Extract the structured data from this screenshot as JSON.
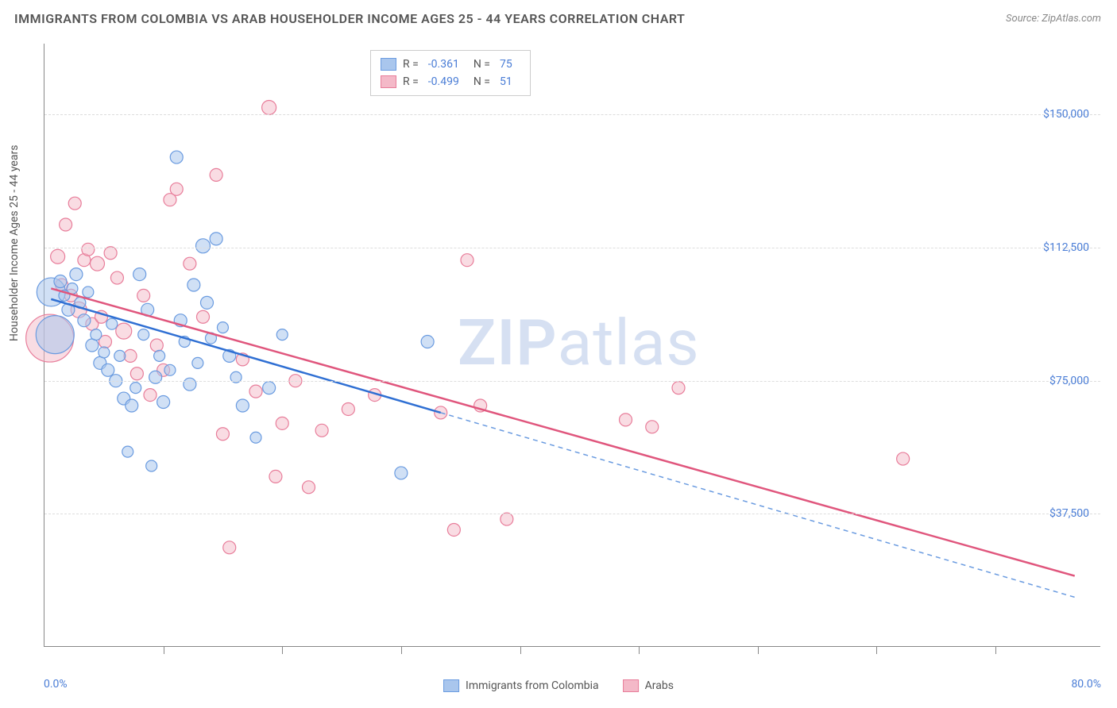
{
  "title": "IMMIGRANTS FROM COLOMBIA VS ARAB HOUSEHOLDER INCOME AGES 25 - 44 YEARS CORRELATION CHART",
  "source": "Source: ZipAtlas.com",
  "watermark_a": "ZIP",
  "watermark_b": "atlas",
  "chart": {
    "type": "scatter",
    "ylabel": "Householder Income Ages 25 - 44 years",
    "xlim": [
      0,
      80
    ],
    "ylim": [
      0,
      170000
    ],
    "xmin_label": "0.0%",
    "xmax_label": "80.0%",
    "yticks": [
      {
        "v": 37500,
        "label": "$37,500"
      },
      {
        "v": 75000,
        "label": "$75,000"
      },
      {
        "v": 112500,
        "label": "$112,500"
      },
      {
        "v": 150000,
        "label": "$150,000"
      }
    ],
    "xticks": [
      9,
      18,
      27,
      36,
      45,
      54,
      63,
      72
    ],
    "grid_color": "#dddddd",
    "axis_color": "#888888",
    "background_color": "#ffffff",
    "label_fontsize": 14,
    "title_fontsize": 16,
    "tick_label_color": "#4a7dd6",
    "series": {
      "colombia": {
        "label": "Immigrants from Colombia",
        "fill_color": "#a9c6ed",
        "stroke_color": "#6a9be0",
        "fill_opacity": 0.55,
        "R": -0.361,
        "N": 75,
        "trend": {
          "x1": 0.5,
          "y1": 98000,
          "x2": 30,
          "y2": 66000,
          "x2_ext": 78,
          "y2_ext": 14000,
          "color": "#2f6fd3",
          "dash_color": "#6a9be0"
        },
        "points": [
          {
            "x": 0.5,
            "y": 100000,
            "r": 18
          },
          {
            "x": 0.8,
            "y": 88000,
            "r": 24
          },
          {
            "x": 1.2,
            "y": 103000,
            "r": 8
          },
          {
            "x": 1.5,
            "y": 99000,
            "r": 7
          },
          {
            "x": 1.8,
            "y": 95000,
            "r": 8
          },
          {
            "x": 2.1,
            "y": 101000,
            "r": 7
          },
          {
            "x": 2.4,
            "y": 105000,
            "r": 8
          },
          {
            "x": 2.7,
            "y": 97000,
            "r": 7
          },
          {
            "x": 3,
            "y": 92000,
            "r": 8
          },
          {
            "x": 3.3,
            "y": 100000,
            "r": 7
          },
          {
            "x": 3.6,
            "y": 85000,
            "r": 8
          },
          {
            "x": 3.9,
            "y": 88000,
            "r": 7
          },
          {
            "x": 4.2,
            "y": 80000,
            "r": 8
          },
          {
            "x": 4.5,
            "y": 83000,
            "r": 7
          },
          {
            "x": 4.8,
            "y": 78000,
            "r": 8
          },
          {
            "x": 5.1,
            "y": 91000,
            "r": 7
          },
          {
            "x": 5.4,
            "y": 75000,
            "r": 8
          },
          {
            "x": 5.7,
            "y": 82000,
            "r": 7
          },
          {
            "x": 6,
            "y": 70000,
            "r": 8
          },
          {
            "x": 6.3,
            "y": 55000,
            "r": 7
          },
          {
            "x": 6.6,
            "y": 68000,
            "r": 8
          },
          {
            "x": 6.9,
            "y": 73000,
            "r": 7
          },
          {
            "x": 7.2,
            "y": 105000,
            "r": 8
          },
          {
            "x": 7.5,
            "y": 88000,
            "r": 7
          },
          {
            "x": 7.8,
            "y": 95000,
            "r": 8
          },
          {
            "x": 8.1,
            "y": 51000,
            "r": 7
          },
          {
            "x": 8.4,
            "y": 76000,
            "r": 8
          },
          {
            "x": 8.7,
            "y": 82000,
            "r": 7
          },
          {
            "x": 9,
            "y": 69000,
            "r": 8
          },
          {
            "x": 9.5,
            "y": 78000,
            "r": 7
          },
          {
            "x": 10,
            "y": 138000,
            "r": 8
          },
          {
            "x": 10.3,
            "y": 92000,
            "r": 8
          },
          {
            "x": 10.6,
            "y": 86000,
            "r": 7
          },
          {
            "x": 11,
            "y": 74000,
            "r": 8
          },
          {
            "x": 11.3,
            "y": 102000,
            "r": 8
          },
          {
            "x": 11.6,
            "y": 80000,
            "r": 7
          },
          {
            "x": 12,
            "y": 113000,
            "r": 9
          },
          {
            "x": 12.3,
            "y": 97000,
            "r": 8
          },
          {
            "x": 12.6,
            "y": 87000,
            "r": 7
          },
          {
            "x": 13,
            "y": 115000,
            "r": 8
          },
          {
            "x": 13.5,
            "y": 90000,
            "r": 7
          },
          {
            "x": 14,
            "y": 82000,
            "r": 8
          },
          {
            "x": 14.5,
            "y": 76000,
            "r": 7
          },
          {
            "x": 15,
            "y": 68000,
            "r": 8
          },
          {
            "x": 16,
            "y": 59000,
            "r": 7
          },
          {
            "x": 17,
            "y": 73000,
            "r": 8
          },
          {
            "x": 18,
            "y": 88000,
            "r": 7
          },
          {
            "x": 27,
            "y": 49000,
            "r": 8
          },
          {
            "x": 29,
            "y": 86000,
            "r": 8
          }
        ]
      },
      "arabs": {
        "label": "Arabs",
        "fill_color": "#f4b9c8",
        "stroke_color": "#e87d9a",
        "fill_opacity": 0.5,
        "R": -0.499,
        "N": 51,
        "trend": {
          "x1": 0.5,
          "y1": 101000,
          "x2": 78,
          "y2": 20000,
          "color": "#e0567d"
        },
        "points": [
          {
            "x": 0.4,
            "y": 87000,
            "r": 30
          },
          {
            "x": 1,
            "y": 110000,
            "r": 9
          },
          {
            "x": 1.3,
            "y": 102000,
            "r": 8
          },
          {
            "x": 1.6,
            "y": 119000,
            "r": 8
          },
          {
            "x": 2,
            "y": 99000,
            "r": 8
          },
          {
            "x": 2.3,
            "y": 125000,
            "r": 8
          },
          {
            "x": 2.6,
            "y": 95000,
            "r": 10
          },
          {
            "x": 3,
            "y": 109000,
            "r": 8
          },
          {
            "x": 3.3,
            "y": 112000,
            "r": 8
          },
          {
            "x": 3.6,
            "y": 91000,
            "r": 8
          },
          {
            "x": 4,
            "y": 108000,
            "r": 9
          },
          {
            "x": 4.3,
            "y": 93000,
            "r": 8
          },
          {
            "x": 4.6,
            "y": 86000,
            "r": 8
          },
          {
            "x": 5,
            "y": 111000,
            "r": 8
          },
          {
            "x": 5.5,
            "y": 104000,
            "r": 8
          },
          {
            "x": 6,
            "y": 89000,
            "r": 10
          },
          {
            "x": 6.5,
            "y": 82000,
            "r": 8
          },
          {
            "x": 7,
            "y": 77000,
            "r": 8
          },
          {
            "x": 7.5,
            "y": 99000,
            "r": 8
          },
          {
            "x": 8,
            "y": 71000,
            "r": 8
          },
          {
            "x": 8.5,
            "y": 85000,
            "r": 8
          },
          {
            "x": 9,
            "y": 78000,
            "r": 8
          },
          {
            "x": 9.5,
            "y": 126000,
            "r": 8
          },
          {
            "x": 10,
            "y": 129000,
            "r": 8
          },
          {
            "x": 11,
            "y": 108000,
            "r": 8
          },
          {
            "x": 12,
            "y": 93000,
            "r": 8
          },
          {
            "x": 13,
            "y": 133000,
            "r": 8
          },
          {
            "x": 13.5,
            "y": 60000,
            "r": 8
          },
          {
            "x": 14,
            "y": 28000,
            "r": 8
          },
          {
            "x": 15,
            "y": 81000,
            "r": 8
          },
          {
            "x": 16,
            "y": 72000,
            "r": 8
          },
          {
            "x": 17,
            "y": 152000,
            "r": 9
          },
          {
            "x": 17.5,
            "y": 48000,
            "r": 8
          },
          {
            "x": 18,
            "y": 63000,
            "r": 8
          },
          {
            "x": 19,
            "y": 75000,
            "r": 8
          },
          {
            "x": 20,
            "y": 45000,
            "r": 8
          },
          {
            "x": 21,
            "y": 61000,
            "r": 8
          },
          {
            "x": 23,
            "y": 67000,
            "r": 8
          },
          {
            "x": 25,
            "y": 71000,
            "r": 8
          },
          {
            "x": 30,
            "y": 66000,
            "r": 8
          },
          {
            "x": 31,
            "y": 33000,
            "r": 8
          },
          {
            "x": 32,
            "y": 109000,
            "r": 8
          },
          {
            "x": 33,
            "y": 68000,
            "r": 8
          },
          {
            "x": 35,
            "y": 36000,
            "r": 8
          },
          {
            "x": 44,
            "y": 64000,
            "r": 8
          },
          {
            "x": 46,
            "y": 62000,
            "r": 8
          },
          {
            "x": 48,
            "y": 73000,
            "r": 8
          },
          {
            "x": 65,
            "y": 53000,
            "r": 8
          }
        ]
      }
    },
    "legend_bottom": [
      "colombia",
      "arabs"
    ]
  }
}
